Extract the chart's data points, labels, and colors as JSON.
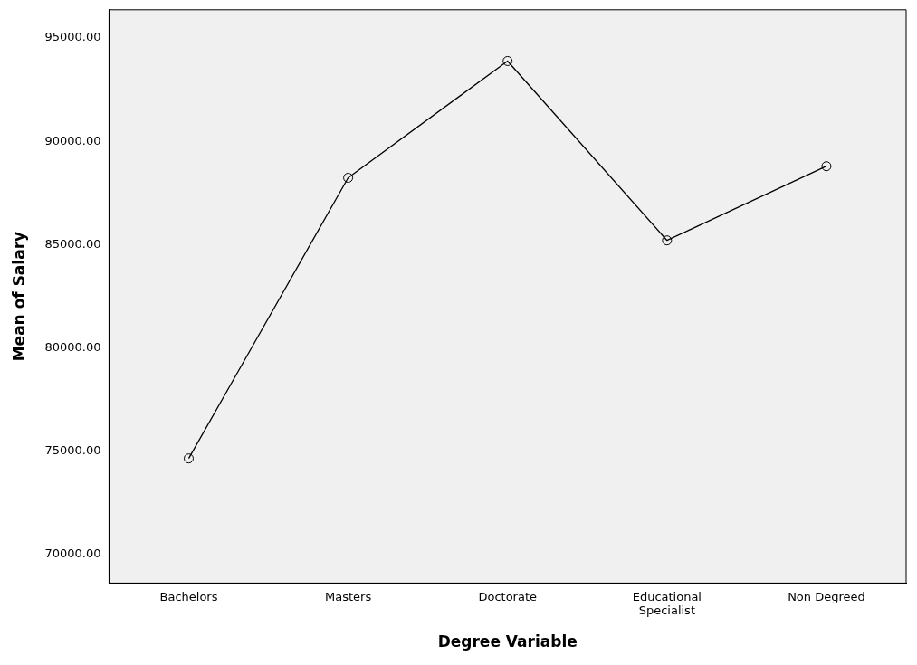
{
  "chart_data": {
    "type": "line",
    "xlabel": "Degree Variable",
    "ylabel": "Mean of Salary",
    "categories": [
      "Bachelors",
      "Masters",
      "Doctorate",
      "Educational Specialist",
      "Non Degreed"
    ],
    "series": [
      {
        "color": "#000000",
        "values": [
          74660,
          88240,
          93890,
          85210,
          88800
        ]
      }
    ],
    "ylim": [
      68630,
      96370
    ],
    "yticks": [
      {
        "value": 70000,
        "label": "70000.00"
      },
      {
        "value": 75000,
        "label": "75000.00"
      },
      {
        "value": 80000,
        "label": "80000.00"
      },
      {
        "value": 85000,
        "label": "85000.00"
      },
      {
        "value": 90000,
        "label": "90000.00"
      },
      {
        "value": 95000,
        "label": "95000.00"
      }
    ],
    "grid": false,
    "legend": false,
    "marker": "circle",
    "line_style": "solid"
  }
}
